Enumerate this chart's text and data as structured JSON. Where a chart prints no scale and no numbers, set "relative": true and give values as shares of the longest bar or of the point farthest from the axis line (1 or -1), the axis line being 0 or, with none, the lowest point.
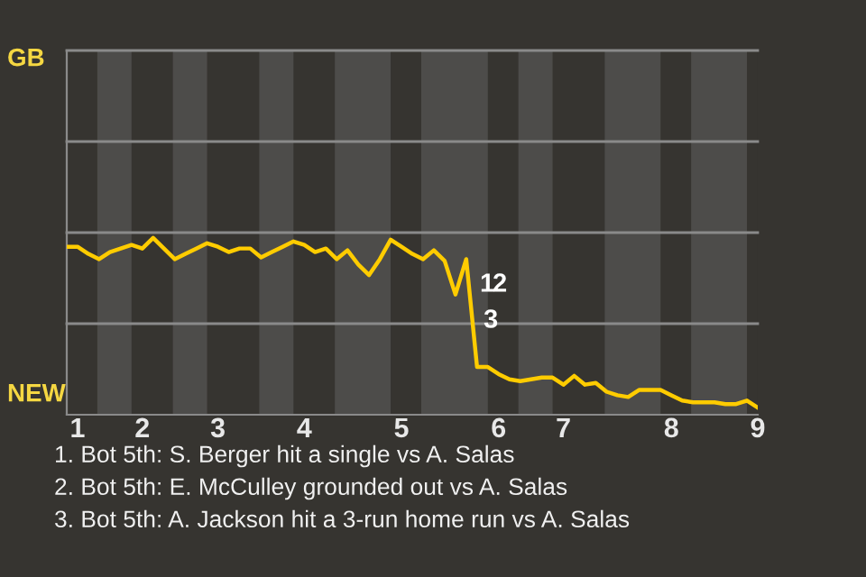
{
  "chart_data": {
    "type": "line",
    "relative": true,
    "categories": [
      null,
      "1",
      null,
      null,
      null,
      null,
      null,
      "2",
      null,
      null,
      null,
      null,
      null,
      null,
      "3",
      null,
      null,
      null,
      null,
      null,
      null,
      null,
      "4",
      null,
      null,
      null,
      null,
      null,
      null,
      null,
      null,
      "5",
      null,
      null,
      null,
      null,
      null,
      null,
      null,
      null,
      "6",
      null,
      null,
      null,
      null,
      null,
      "7",
      null,
      null,
      null,
      null,
      null,
      null,
      null,
      null,
      null,
      "8",
      null,
      null,
      null,
      null,
      null,
      null,
      null,
      "9"
    ],
    "series": [
      {
        "color": "#ffcc00",
        "values": [
          0.95,
          0.95,
          0.91,
          0.88,
          0.92,
          0.94,
          0.96,
          0.94,
          1,
          0.94,
          0.88,
          0.91,
          0.94,
          0.97,
          0.95,
          0.92,
          0.94,
          0.94,
          0.89,
          0.92,
          0.95,
          0.98,
          0.96,
          0.92,
          0.94,
          0.88,
          0.93,
          0.85,
          0.79,
          0.88,
          0.99,
          0.95,
          0.91,
          0.88,
          0.93,
          0.87,
          0.68,
          0.88,
          0.27,
          0.27,
          0.23,
          0.2,
          0.19,
          0.2,
          0.21,
          0.21,
          0.17,
          0.22,
          0.17,
          0.18,
          0.13,
          0.11,
          0.1,
          0.14,
          0.14,
          0.14,
          0.11,
          0.08,
          0.07,
          0.07,
          0.07,
          0.06,
          0.06,
          0.08,
          0.04
        ]
      }
    ],
    "marker": "none",
    "line_style": "solid",
    "ref_lines": [
      {
        "axis": "y",
        "value": 0.515,
        "color": "#8a8a8a"
      },
      {
        "axis": "y",
        "value": 1.03,
        "color": "#8a8a8a"
      },
      {
        "axis": "y",
        "value": 1.545,
        "color": "#8a8a8a"
      },
      {
        "axis": "y",
        "value": 2.06,
        "color": "#8a8a8a"
      }
    ],
    "annotations": [
      "GB",
      "NEW",
      "1",
      "2",
      "3",
      "1. Bot 5th: S. Berger hit a single vs A. Salas",
      "2. Bot 5th: E. McCulley grounded out vs A. Salas",
      "3. Bot 5th: A. Jackson hit a 3-run home run vs A. Salas"
    ]
  }
}
